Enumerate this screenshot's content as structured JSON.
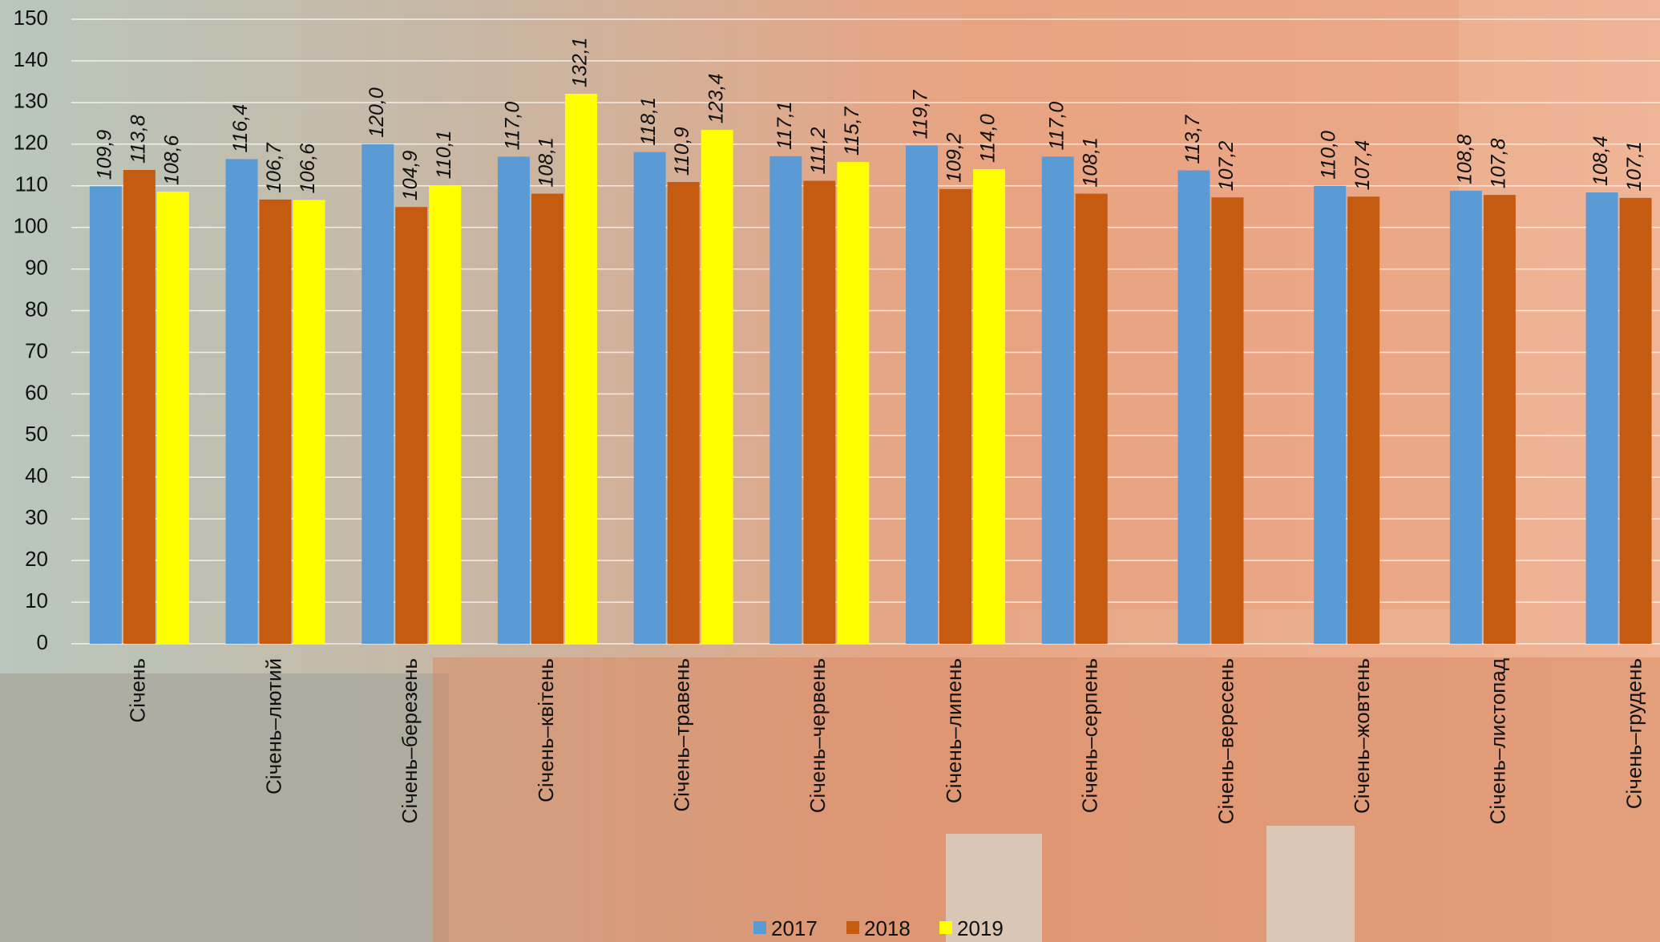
{
  "chart_data": {
    "type": "bar",
    "categories": [
      "Січень",
      "Січень–лютий",
      "Січень–березень",
      "Січень–квітень",
      "Січень–травень",
      "Січень–червень",
      "Січень–липень",
      "Січень–серпень",
      "Січень–вересень",
      "Січень–жовтень",
      "Січень–листопад",
      "Січень–грудень"
    ],
    "series": [
      {
        "name": "2017",
        "color": "#5b9bd5",
        "values": [
          109.9,
          116.4,
          120.0,
          117.0,
          118.1,
          117.1,
          119.7,
          117.0,
          113.7,
          110.0,
          108.8,
          108.4
        ],
        "value_labels": [
          "109,9",
          "116,4",
          "120,0",
          "117,0",
          "118,1",
          "117,1",
          "119,7",
          "117,0",
          "113,7",
          "110,0",
          "108,8",
          "108,4"
        ]
      },
      {
        "name": "2018",
        "color": "#c55a11",
        "values": [
          113.8,
          106.7,
          104.9,
          108.1,
          110.9,
          111.2,
          109.2,
          108.1,
          107.2,
          107.4,
          107.8,
          107.1
        ],
        "value_labels": [
          "113,8",
          "106,7",
          "104,9",
          "108,1",
          "110,9",
          "111,2",
          "109,2",
          "108,1",
          "107,2",
          "107,4",
          "107,8",
          "107,1"
        ]
      },
      {
        "name": "2019",
        "color": "#ffff00",
        "values": [
          108.6,
          106.6,
          110.1,
          132.1,
          123.4,
          115.7,
          114.0,
          null,
          null,
          null,
          null,
          null
        ],
        "value_labels": [
          "108,6",
          "106,6",
          "110,1",
          "132,1",
          "123,4",
          "115,7",
          "114,0",
          null,
          null,
          null,
          null,
          null
        ]
      }
    ],
    "ylim": [
      0,
      150
    ],
    "yticks": [
      0,
      10,
      20,
      30,
      40,
      50,
      60,
      70,
      80,
      90,
      100,
      110,
      120,
      130,
      140,
      150
    ],
    "grid": true,
    "legend": "bottom"
  }
}
